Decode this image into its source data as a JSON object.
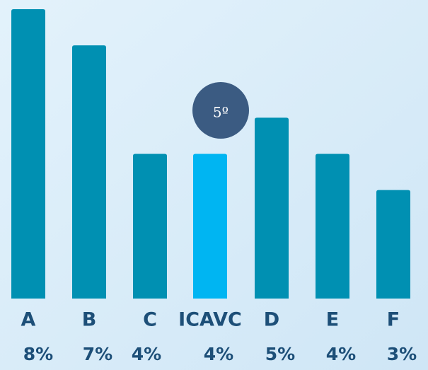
{
  "chart_data": {
    "type": "bar",
    "categories": [
      "A",
      "B",
      "C",
      "ICAVC",
      "D",
      "E",
      "F"
    ],
    "values": [
      8,
      7,
      4,
      4,
      5,
      4,
      3
    ],
    "value_labels": [
      "8%",
      "7%",
      "4%",
      "4%",
      "5%",
      "4%",
      "3%"
    ],
    "color": "#0090b2",
    "highlight": {
      "category": "ICAVC",
      "color": "#00b5f2",
      "annotation": "5º"
    }
  }
}
